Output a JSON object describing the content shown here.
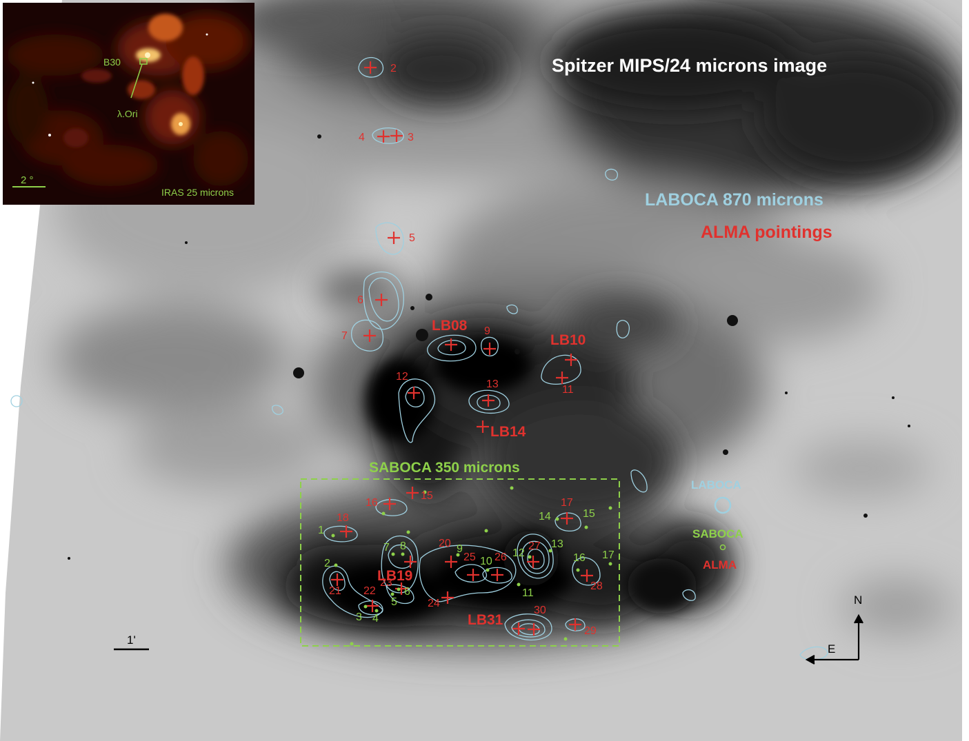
{
  "title": "Spitzer MIPS/24 microns image",
  "legend": {
    "laboca": "LABOCA 870 microns",
    "alma": "ALMA pointings",
    "saboca_box": "SABOCA 350 microns"
  },
  "beams": {
    "laboca": "LABOCA",
    "saboca": "SABOCA",
    "alma": "ALMA"
  },
  "scale_bar": "1'",
  "compass": {
    "north": "N",
    "east": "E"
  },
  "inset": {
    "b30": "B30",
    "lambda_ori": "λ.Ori",
    "scale": "2 °",
    "caption": "IRAS 25 microns"
  },
  "alma_labels": {
    "n2": "2",
    "n3": "3",
    "n4": "4",
    "n5": "5",
    "n6": "6",
    "n7": "7",
    "lb08": "LB08",
    "n9": "9",
    "lb10": "LB10",
    "n11": "11",
    "n12": "12",
    "n13": "13",
    "lb14": "LB14",
    "n15": "15",
    "n16": "16",
    "n17": "17",
    "n18": "18",
    "lb19": "LB19",
    "n20": "20",
    "n21": "21",
    "n22": "22",
    "n23": "23",
    "n24": "24",
    "n25": "25",
    "n26": "26",
    "n27": "27",
    "n28": "28",
    "n29": "29",
    "n30": "30",
    "lb31": "LB31"
  },
  "saboca_labels": {
    "s1": "1",
    "s2": "2",
    "s3": "3",
    "s4": "4",
    "s5": "5",
    "s6": "6",
    "s7": "7",
    "s8": "8",
    "s9": "9",
    "s10": "10",
    "s11": "11",
    "s12": "12",
    "s13": "13",
    "s14": "14",
    "s15": "15",
    "s16": "16",
    "s17": "17"
  },
  "colors": {
    "alma": "#e0322e",
    "laboca": "#9fd0e0",
    "saboca": "#8ed14a",
    "title": "#ffffff"
  }
}
